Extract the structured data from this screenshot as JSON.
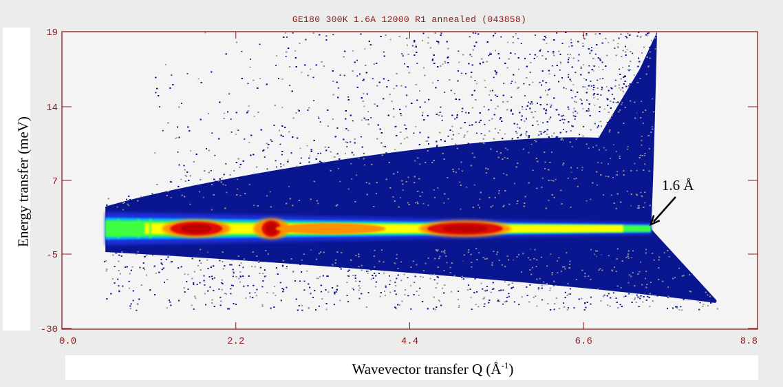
{
  "chart_data": {
    "type": "heatmap",
    "title": "GE180 300K 1.6A 12000 R1 annealed (043858)",
    "xlabel": "Wavevector transfer Q (Å-1)",
    "xlabel_main": "Wavevector transfer Q (Å",
    "xlabel_sup": "-1",
    "xlabel_close": ")",
    "ylabel": "Energy transfer (meV)",
    "xlim": [
      0.0,
      8.8
    ],
    "x_ticks": [
      "0.0",
      "2.2",
      "4.4",
      "6.6",
      "8.8"
    ],
    "y_ticks": [
      "19",
      "14",
      "7",
      "-5",
      "-30"
    ],
    "colormap": [
      "#f4f4f4",
      "#8f8f8f",
      "#0a1690",
      "#1e2fd8",
      "#00b4ff",
      "#40ff40",
      "#ffff00",
      "#ff9000",
      "#e01000",
      "#c00000"
    ],
    "elastic_line": {
      "energy": 0,
      "q_start": 0.55,
      "q_end": 7.45,
      "hot_spots_q": [
        1.7,
        2.65,
        5.1
      ]
    },
    "annotation": {
      "text": "1.6 Å",
      "points_to_q": 7.45,
      "points_to_energy": 0
    }
  }
}
